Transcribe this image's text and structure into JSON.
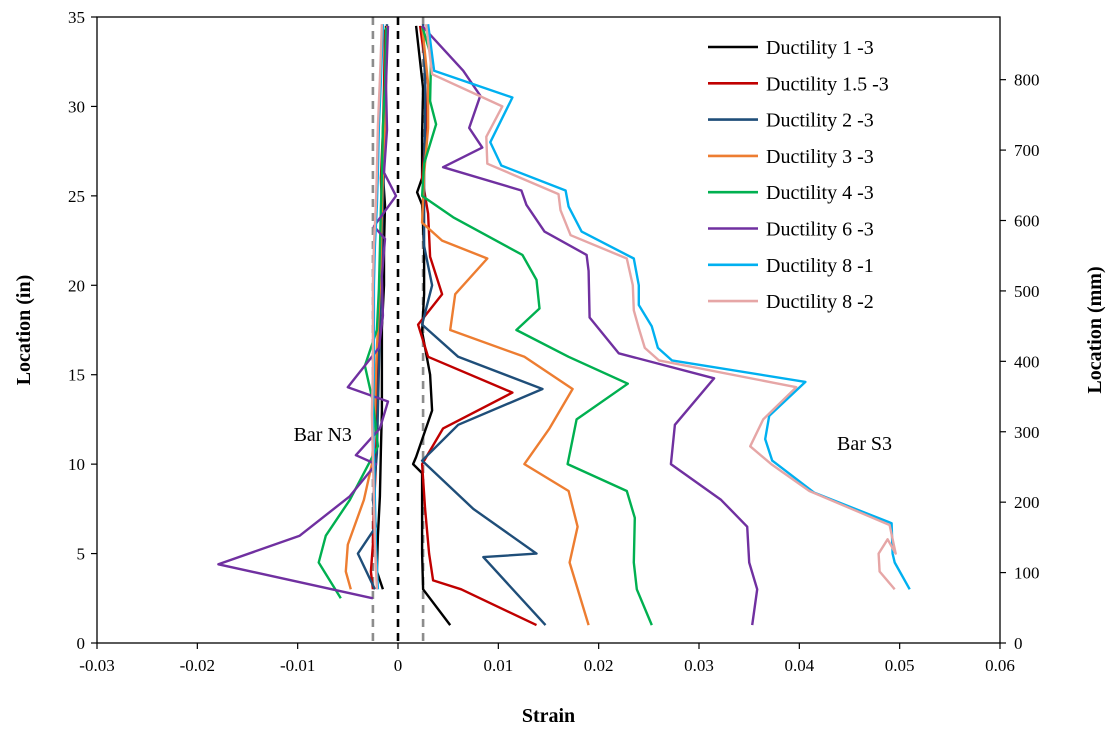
{
  "chart_data": {
    "type": "line",
    "xlabel": "Strain",
    "ylabel": "Location (in)",
    "y2label": "Location (mm)",
    "xlim": [
      -0.03,
      0.06
    ],
    "ylim": [
      0,
      35
    ],
    "y2lim": [
      0,
      889
    ],
    "xticks": [
      -0.03,
      -0.02,
      -0.01,
      0,
      0.01,
      0.02,
      0.03,
      0.04,
      0.05,
      0.06
    ],
    "xtick_labels": [
      "-0.03",
      "-0.02",
      "-0.01",
      "0",
      "0.01",
      "0.02",
      "0.03",
      "0.04",
      "0.05",
      "0.06"
    ],
    "yticks": [
      0,
      5,
      10,
      15,
      20,
      25,
      30,
      35
    ],
    "ytick_labels": [
      "0",
      "5",
      "10",
      "15",
      "20",
      "25",
      "30",
      "35"
    ],
    "y2ticks": [
      0,
      100,
      200,
      300,
      400,
      500,
      600,
      700,
      800
    ],
    "y2tick_labels": [
      "0",
      "100",
      "200",
      "300",
      "400",
      "500",
      "600",
      "700",
      "800"
    ],
    "grid": false,
    "legend_position": "top-right",
    "annotations": [
      {
        "text": "Bar N3",
        "x": -0.0075,
        "y": 11.3
      },
      {
        "text": "Bar S3",
        "x": 0.0465,
        "y": 10.8
      }
    ],
    "reference_lines": [
      {
        "x": -0.0025,
        "style": "dashed",
        "color": "#8c8c8c"
      },
      {
        "x": 0,
        "style": "dashed",
        "color": "#000000"
      },
      {
        "x": 0.0025,
        "style": "dashed",
        "color": "#8c8c8c"
      }
    ],
    "series": [
      {
        "name": "Ductility 1 -3",
        "color": "#000000",
        "bar_n3": [
          [
            -0.0012,
            34.5
          ],
          [
            -0.0013,
            31.2
          ],
          [
            -0.0013,
            28.8
          ],
          [
            -0.0015,
            26.2
          ],
          [
            -0.0013,
            24.5
          ],
          [
            -0.0014,
            22.2
          ],
          [
            -0.0014,
            20.0
          ],
          [
            -0.0016,
            17.6
          ],
          [
            -0.0016,
            15.2
          ],
          [
            -0.0016,
            13.0
          ],
          [
            -0.0017,
            10.8
          ],
          [
            -0.0018,
            8.2
          ],
          [
            -0.002,
            6.0
          ],
          [
            -0.0021,
            4.0
          ],
          [
            -0.0015,
            3.0
          ]
        ],
        "bar_s3": [
          [
            0.0018,
            34.5
          ],
          [
            0.0025,
            31.0
          ],
          [
            0.0024,
            28.5
          ],
          [
            0.0024,
            26.0
          ],
          [
            0.0019,
            25.2
          ],
          [
            0.0024,
            24.5
          ],
          [
            0.0026,
            22.0
          ],
          [
            0.0026,
            19.5
          ],
          [
            0.0024,
            17.4
          ],
          [
            0.0032,
            15.0
          ],
          [
            0.0034,
            13.0
          ],
          [
            0.0018,
            10.4
          ],
          [
            0.0015,
            10.0
          ],
          [
            0.0024,
            9.5
          ],
          [
            0.0024,
            5.0
          ],
          [
            0.0025,
            3.0
          ],
          [
            0.0052,
            1.0
          ]
        ]
      },
      {
        "name": "Ductility 1.5 -3",
        "color": "#c00000",
        "bar_n3": [
          [
            -0.0013,
            34.3
          ],
          [
            -0.0014,
            31.0
          ],
          [
            -0.0015,
            28.6
          ],
          [
            -0.0017,
            26.0
          ],
          [
            -0.0016,
            24.3
          ],
          [
            -0.0017,
            22.0
          ],
          [
            -0.0018,
            19.8
          ],
          [
            -0.0019,
            17.5
          ],
          [
            -0.002,
            15.0
          ],
          [
            -0.0021,
            12.5
          ],
          [
            -0.0022,
            10.0
          ],
          [
            -0.0024,
            7.5
          ],
          [
            -0.0025,
            5.5
          ],
          [
            -0.0027,
            4.0
          ],
          [
            -0.0025,
            3.0
          ]
        ],
        "bar_s3": [
          [
            0.0022,
            34.5
          ],
          [
            0.003,
            31.2
          ],
          [
            0.0028,
            28.6
          ],
          [
            0.0024,
            26.0
          ],
          [
            0.003,
            24.0
          ],
          [
            0.0032,
            21.6
          ],
          [
            0.0044,
            19.5
          ],
          [
            0.002,
            17.8
          ],
          [
            0.003,
            16.0
          ],
          [
            0.0114,
            14.0
          ],
          [
            0.0045,
            12.0
          ],
          [
            0.0024,
            10.0
          ],
          [
            0.0027,
            7.5
          ],
          [
            0.0031,
            5.0
          ],
          [
            0.0035,
            3.5
          ],
          [
            0.0063,
            3.0
          ],
          [
            0.0138,
            1.0
          ]
        ]
      },
      {
        "name": "Ductility 2 -3",
        "color": "#1f4e79",
        "bar_n3": [
          [
            -0.0011,
            34.6
          ],
          [
            -0.0012,
            31.4
          ],
          [
            -0.0013,
            29.0
          ],
          [
            -0.0014,
            26.5
          ],
          [
            -0.0015,
            24.6
          ],
          [
            -0.0016,
            22.4
          ],
          [
            -0.0017,
            20.2
          ],
          [
            -0.0018,
            17.8
          ],
          [
            -0.0019,
            15.4
          ],
          [
            -0.002,
            13.0
          ],
          [
            -0.0021,
            10.6
          ],
          [
            -0.0025,
            8.0
          ],
          [
            -0.0022,
            6.5
          ],
          [
            -0.004,
            5.0
          ],
          [
            -0.0023,
            3.0
          ]
        ],
        "bar_s3": [
          [
            0.0025,
            34.6
          ],
          [
            0.0027,
            31.3
          ],
          [
            0.0027,
            29.0
          ],
          [
            0.0026,
            26.4
          ],
          [
            0.0026,
            24.5
          ],
          [
            0.0026,
            22.2
          ],
          [
            0.0034,
            20.0
          ],
          [
            0.0024,
            17.8
          ],
          [
            0.006,
            16.0
          ],
          [
            0.0144,
            14.2
          ],
          [
            0.006,
            12.2
          ],
          [
            0.0024,
            10.2
          ],
          [
            0.0075,
            7.5
          ],
          [
            0.0138,
            5.0
          ],
          [
            0.0085,
            4.8
          ],
          [
            0.0147,
            1.0
          ]
        ]
      },
      {
        "name": "Ductility 3 -3",
        "color": "#ed7d31",
        "bar_n3": [
          [
            -0.0011,
            34.5
          ],
          [
            -0.0012,
            31.3
          ],
          [
            -0.0013,
            28.9
          ],
          [
            -0.0015,
            26.3
          ],
          [
            -0.0016,
            24.4
          ],
          [
            -0.0017,
            22.2
          ],
          [
            -0.0018,
            20.0
          ],
          [
            -0.002,
            17.6
          ],
          [
            -0.0022,
            15.2
          ],
          [
            -0.0023,
            12.8
          ],
          [
            -0.0026,
            10.0
          ],
          [
            -0.0034,
            8.0
          ],
          [
            -0.005,
            5.5
          ],
          [
            -0.0052,
            4.0
          ],
          [
            -0.0047,
            3.0
          ]
        ],
        "bar_s3": [
          [
            0.0024,
            34.5
          ],
          [
            0.003,
            31.3
          ],
          [
            0.003,
            28.8
          ],
          [
            0.0026,
            26.2
          ],
          [
            0.0024,
            23.5
          ],
          [
            0.0044,
            22.5
          ],
          [
            0.0089,
            21.5
          ],
          [
            0.0057,
            19.5
          ],
          [
            0.0052,
            17.5
          ],
          [
            0.0126,
            16.0
          ],
          [
            0.0174,
            14.2
          ],
          [
            0.0151,
            12.0
          ],
          [
            0.0126,
            10.0
          ],
          [
            0.017,
            8.5
          ],
          [
            0.0179,
            6.5
          ],
          [
            0.0171,
            4.5
          ],
          [
            0.019,
            1.0
          ]
        ]
      },
      {
        "name": "Ductility 4 -3",
        "color": "#00b050",
        "bar_n3": [
          [
            -0.0012,
            34.4
          ],
          [
            -0.0013,
            31.2
          ],
          [
            -0.0015,
            28.8
          ],
          [
            -0.0016,
            26.2
          ],
          [
            -0.0017,
            24.3
          ],
          [
            -0.0018,
            22.0
          ],
          [
            -0.0019,
            19.8
          ],
          [
            -0.0021,
            17.5
          ],
          [
            -0.0033,
            15.5
          ],
          [
            -0.0025,
            13.5
          ],
          [
            -0.002,
            11.0
          ],
          [
            -0.0048,
            8.0
          ],
          [
            -0.0072,
            6.0
          ],
          [
            -0.0079,
            4.5
          ],
          [
            -0.0057,
            2.5
          ]
        ],
        "bar_s3": [
          [
            0.0024,
            34.5
          ],
          [
            0.0033,
            32.8
          ],
          [
            0.0032,
            30.3
          ],
          [
            0.0038,
            29.0
          ],
          [
            0.0026,
            26.8
          ],
          [
            0.0024,
            25.0
          ],
          [
            0.0055,
            23.8
          ],
          [
            0.0124,
            21.7
          ],
          [
            0.0138,
            20.3
          ],
          [
            0.0141,
            18.7
          ],
          [
            0.0118,
            17.5
          ],
          [
            0.017,
            16.0
          ],
          [
            0.0229,
            14.5
          ],
          [
            0.0178,
            12.5
          ],
          [
            0.0169,
            10.0
          ],
          [
            0.0228,
            8.5
          ],
          [
            0.0236,
            7.0
          ],
          [
            0.0235,
            4.5
          ],
          [
            0.0238,
            3.0
          ],
          [
            0.0253,
            1.0
          ]
        ]
      },
      {
        "name": "Ductility 6 -3",
        "color": "#7030a0",
        "bar_n3": [
          [
            -0.001,
            34.5
          ],
          [
            -0.0012,
            31.2
          ],
          [
            -0.0011,
            28.7
          ],
          [
            -0.0014,
            26.3
          ],
          [
            -0.0002,
            25.0
          ],
          [
            -0.0024,
            23.3
          ],
          [
            -0.0013,
            22.6
          ],
          [
            -0.0016,
            20.5
          ],
          [
            -0.0015,
            18.3
          ],
          [
            -0.0019,
            16.5
          ],
          [
            -0.005,
            14.3
          ],
          [
            -0.001,
            13.5
          ],
          [
            -0.0018,
            12.0
          ],
          [
            -0.0042,
            10.5
          ],
          [
            -0.0022,
            10.0
          ],
          [
            -0.0048,
            8.2
          ],
          [
            -0.0098,
            6.0
          ],
          [
            -0.0179,
            4.4
          ],
          [
            -0.0025,
            2.5
          ]
        ],
        "bar_s3": [
          [
            0.0024,
            34.5
          ],
          [
            0.0065,
            32.0
          ],
          [
            0.0082,
            30.6
          ],
          [
            0.0071,
            28.8
          ],
          [
            0.0084,
            27.7
          ],
          [
            0.0045,
            26.6
          ],
          [
            0.0123,
            25.3
          ],
          [
            0.0128,
            24.5
          ],
          [
            0.0146,
            23.0
          ],
          [
            0.0188,
            21.7
          ],
          [
            0.019,
            20.8
          ],
          [
            0.0191,
            18.2
          ],
          [
            0.022,
            16.2
          ],
          [
            0.0315,
            14.8
          ],
          [
            0.0276,
            12.2
          ],
          [
            0.0272,
            10.0
          ],
          [
            0.0322,
            8.0
          ],
          [
            0.0348,
            6.5
          ],
          [
            0.035,
            4.5
          ],
          [
            0.0358,
            3.0
          ],
          [
            0.0353,
            1.0
          ]
        ]
      },
      {
        "name": "Ductility 8 -1",
        "color": "#00b0f0",
        "bar_n3": [
          [
            -0.0015,
            34.6
          ],
          [
            -0.0017,
            31.5
          ],
          [
            -0.0019,
            28.9
          ],
          [
            -0.002,
            26.4
          ],
          [
            -0.0021,
            24.5
          ],
          [
            -0.0023,
            22.2
          ],
          [
            -0.0024,
            20.0
          ],
          [
            -0.0024,
            17.6
          ],
          [
            -0.0024,
            15.2
          ],
          [
            -0.0025,
            12.8
          ],
          [
            -0.0024,
            10.4
          ],
          [
            -0.0023,
            8.0
          ],
          [
            -0.0022,
            5.5
          ],
          [
            -0.002,
            3.0
          ]
        ],
        "bar_s3": [
          [
            0.003,
            34.6
          ],
          [
            0.0036,
            32.0
          ],
          [
            0.0114,
            30.5
          ],
          [
            0.0092,
            28.0
          ],
          [
            0.0103,
            26.7
          ],
          [
            0.0167,
            25.3
          ],
          [
            0.017,
            24.4
          ],
          [
            0.0183,
            23.0
          ],
          [
            0.0235,
            21.5
          ],
          [
            0.024,
            20.0
          ],
          [
            0.024,
            18.9
          ],
          [
            0.0253,
            17.7
          ],
          [
            0.0259,
            16.5
          ],
          [
            0.0273,
            15.8
          ],
          [
            0.0406,
            14.6
          ],
          [
            0.037,
            12.7
          ],
          [
            0.0366,
            11.4
          ],
          [
            0.0373,
            10.2
          ],
          [
            0.0415,
            8.4
          ],
          [
            0.0492,
            6.7
          ],
          [
            0.0493,
            5.0
          ],
          [
            0.0495,
            4.5
          ],
          [
            0.051,
            3.0
          ]
        ]
      },
      {
        "name": "Ductility 8 -2",
        "color": "#e6a6a6",
        "bar_n3": [
          [
            -0.0016,
            34.6
          ],
          [
            -0.0018,
            31.5
          ],
          [
            -0.002,
            28.9
          ],
          [
            -0.0021,
            26.4
          ],
          [
            -0.0022,
            24.5
          ],
          [
            -0.0024,
            22.2
          ],
          [
            -0.0025,
            20.0
          ],
          [
            -0.0025,
            17.6
          ],
          [
            -0.0025,
            15.2
          ],
          [
            -0.0026,
            12.8
          ],
          [
            -0.0025,
            10.4
          ],
          [
            -0.0024,
            8.0
          ],
          [
            -0.0023,
            5.5
          ],
          [
            -0.0021,
            3.0
          ]
        ],
        "bar_s3": [
          [
            0.0028,
            34.6
          ],
          [
            0.0034,
            31.8
          ],
          [
            0.0104,
            30.0
          ],
          [
            0.0088,
            28.3
          ],
          [
            0.0089,
            26.8
          ],
          [
            0.016,
            25.1
          ],
          [
            0.0162,
            24.2
          ],
          [
            0.0172,
            22.8
          ],
          [
            0.0228,
            21.5
          ],
          [
            0.0234,
            20.0
          ],
          [
            0.0235,
            18.6
          ],
          [
            0.024,
            17.6
          ],
          [
            0.0246,
            16.5
          ],
          [
            0.026,
            15.8
          ],
          [
            0.0397,
            14.3
          ],
          [
            0.0364,
            12.5
          ],
          [
            0.0351,
            11.0
          ],
          [
            0.0372,
            10.0
          ],
          [
            0.041,
            8.5
          ],
          [
            0.049,
            6.6
          ],
          [
            0.0496,
            5.0
          ],
          [
            0.0488,
            5.8
          ],
          [
            0.0479,
            5.0
          ],
          [
            0.048,
            4.0
          ],
          [
            0.0495,
            3.0
          ]
        ]
      }
    ]
  }
}
